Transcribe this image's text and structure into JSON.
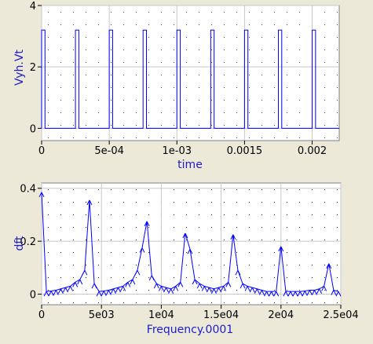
{
  "chart_data": [
    {
      "type": "line",
      "title": "",
      "xlabel": "time",
      "ylabel": "Vyh.Vt",
      "xlim": [
        0,
        0.0022
      ],
      "ylim": [
        -0.4,
        4
      ],
      "x_ticks": [
        0,
        0.0005,
        0.001,
        0.0015,
        0.002
      ],
      "x_tick_labels": [
        "0",
        "5e-04",
        "1e-03",
        "0.0015",
        "0.002"
      ],
      "y_ticks": [
        0,
        2,
        4
      ],
      "y_tick_labels": [
        "0",
        "2",
        "4"
      ],
      "grid": true,
      "grid_style": "dotted",
      "series": [
        {
          "color": "#0000ff",
          "pulse_train": {
            "low": 0,
            "high": 3.2,
            "period": 0.00025,
            "width": 2.5e-05,
            "first_pulse": 0
          }
        }
      ]
    },
    {
      "type": "line",
      "title": "",
      "xlabel": "Frequency.0001",
      "ylabel": "dft",
      "xlim": [
        0,
        25000
      ],
      "ylim": [
        -0.04,
        0.42
      ],
      "x_ticks": [
        0,
        5000,
        10000,
        15000,
        20000,
        25000
      ],
      "x_tick_labels": [
        "0",
        "5e03",
        "1e04",
        "1.5e04",
        "2e04",
        "2.5e04"
      ],
      "y_ticks": [
        0,
        0.2,
        0.4
      ],
      "y_tick_labels": [
        "0",
        "0.2",
        "0.4"
      ],
      "grid": true,
      "grid_style": "dotted",
      "series": [
        {
          "color": "#0000ff",
          "marker": "arrow",
          "x": [
            0,
            400,
            800,
            1200,
            1600,
            2000,
            2400,
            2800,
            3200,
            3600,
            4000,
            4400,
            4800,
            5200,
            5600,
            6000,
            6400,
            6800,
            7200,
            7600,
            8000,
            8400,
            8800,
            9200,
            9600,
            10000,
            10400,
            10800,
            11200,
            11600,
            12000,
            12400,
            12800,
            13200,
            13600,
            14000,
            14400,
            14800,
            15200,
            15600,
            16000,
            16400,
            16800,
            17200,
            17600,
            18000,
            18400,
            18800,
            19200,
            19600,
            20000,
            20400,
            20800,
            21200,
            21600,
            22000,
            22400,
            22800,
            23200,
            23600,
            24000,
            24400,
            24800
          ],
          "y": [
            0.385,
            0.01,
            0.012,
            0.015,
            0.02,
            0.025,
            0.03,
            0.045,
            0.055,
            0.09,
            0.355,
            0.04,
            0.01,
            0.012,
            0.015,
            0.02,
            0.025,
            0.03,
            0.045,
            0.055,
            0.09,
            0.175,
            0.275,
            0.07,
            0.04,
            0.03,
            0.025,
            0.02,
            0.03,
            0.045,
            0.23,
            0.17,
            0.055,
            0.04,
            0.03,
            0.025,
            0.02,
            0.025,
            0.03,
            0.045,
            0.225,
            0.09,
            0.04,
            0.03,
            0.025,
            0.02,
            0.015,
            0.01,
            0.01,
            0.01,
            0.18,
            0.01,
            0.01,
            0.01,
            0.01,
            0.012,
            0.015,
            0.015,
            0.02,
            0.03,
            0.115,
            0.015,
            0.01
          ]
        }
      ]
    }
  ]
}
